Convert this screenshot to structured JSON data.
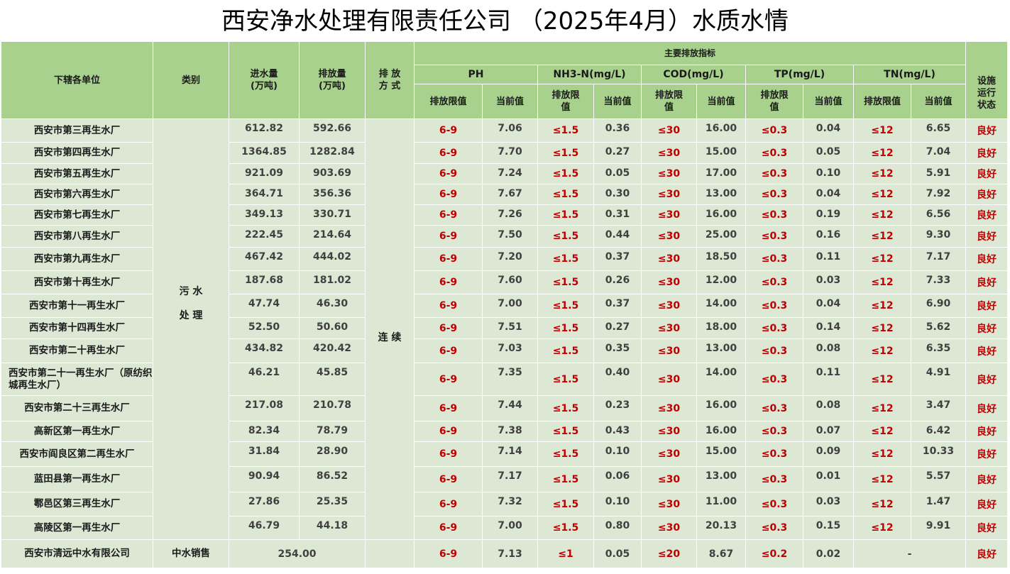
{
  "title": "西安净水处理有限责任公司 （2025年4月）水质水情",
  "header": {
    "unit": "下辖各单位",
    "category": "类别",
    "inflow": "进水量\n(万吨)",
    "outflow": "排放量\n(万吨)",
    "mode": "排 放\n方 式",
    "main_indicators": "主要排放指标",
    "status": "设施\n运行\n状态",
    "ph": "PH",
    "nh3n": "NH3-N(mg/L)",
    "cod": "COD(mg/L)",
    "tp": "TP(mg/L)",
    "tn": "TN(mg/L)",
    "limit": "排放限值",
    "limit_wrap": "排放限\n值",
    "current": "当前值"
  },
  "category_value": "污 水\n\n处 理",
  "mode_value": "连 续",
  "limits": {
    "ph": "6-9",
    "nh3n": "≤1.5",
    "cod": "≤30",
    "tp": "≤0.3",
    "tn": "≤12"
  },
  "rows": [
    {
      "name": "西安市第三再生水厂",
      "inflow": "612.82",
      "outflow": "592.66",
      "ph": "7.06",
      "nh3n": "0.36",
      "cod": "16.00",
      "tp": "0.04",
      "tn": "6.65",
      "status": "良好"
    },
    {
      "name": "西安市第四再生水厂",
      "inflow": "1364.85",
      "outflow": "1282.84",
      "ph": "7.70",
      "nh3n": "0.27",
      "cod": "15.00",
      "tp": "0.05",
      "tn": "7.04",
      "status": "良好"
    },
    {
      "name": "西安市第五再生水厂",
      "inflow": "921.09",
      "outflow": "903.69",
      "ph": "7.24",
      "nh3n": "0.05",
      "cod": "17.00",
      "tp": "0.10",
      "tn": "5.91",
      "status": "良好"
    },
    {
      "name": "西安市第六再生水厂",
      "inflow": "364.71",
      "outflow": "356.36",
      "ph": "7.67",
      "nh3n": "0.30",
      "cod": "13.00",
      "tp": "0.04",
      "tn": "7.92",
      "status": "良好"
    },
    {
      "name": "西安市第七再生水厂",
      "inflow": "349.13",
      "outflow": "330.71",
      "ph": "7.26",
      "nh3n": "0.31",
      "cod": "16.00",
      "tp": "0.19",
      "tn": "6.56",
      "status": "良好"
    },
    {
      "name": "西安市第八再生水厂",
      "inflow": "222.45",
      "outflow": "214.64",
      "ph": "7.50",
      "nh3n": "0.44",
      "cod": "25.00",
      "tp": "0.16",
      "tn": "9.30",
      "status": "良好"
    },
    {
      "name": "西安市第九再生水厂",
      "inflow": "467.42",
      "outflow": "444.02",
      "ph": "7.20",
      "nh3n": "0.37",
      "cod": "18.50",
      "tp": "0.11",
      "tn": "7.17",
      "status": "良好"
    },
    {
      "name": "西安市第十再生水厂",
      "inflow": "187.68",
      "outflow": "181.02",
      "ph": "7.60",
      "nh3n": "0.26",
      "cod": "12.00",
      "tp": "0.03",
      "tn": "7.33",
      "status": "良好"
    },
    {
      "name": "西安市第十一再生水厂",
      "inflow": "47.74",
      "outflow": "46.30",
      "ph": "7.00",
      "nh3n": "0.37",
      "cod": "14.00",
      "tp": "0.04",
      "tn": "6.90",
      "status": "良好"
    },
    {
      "name": "西安市第十四再生水厂",
      "inflow": "52.50",
      "outflow": "50.60",
      "ph": "7.51",
      "nh3n": "0.27",
      "cod": "18.00",
      "tp": "0.14",
      "tn": "5.62",
      "status": "良好"
    },
    {
      "name": "西安市第二十再生水厂",
      "inflow": "434.82",
      "outflow": "420.42",
      "ph": "7.03",
      "nh3n": "0.35",
      "cod": "13.00",
      "tp": "0.08",
      "tn": "6.35",
      "status": "良好"
    },
    {
      "name": "西安市第二十一再生水厂（原纺织城再生水厂）",
      "inflow": "46.21",
      "outflow": "45.85",
      "ph": "7.35",
      "nh3n": "0.40",
      "cod": "14.00",
      "tp": "0.11",
      "tn": "4.91",
      "status": "良好"
    },
    {
      "name": "西安市第二十三再生水厂",
      "inflow": "217.08",
      "outflow": "210.78",
      "ph": "7.44",
      "nh3n": "0.23",
      "cod": "16.00",
      "tp": "0.08",
      "tn": "3.47",
      "status": "良好"
    },
    {
      "name": "高新区第一再生水厂",
      "inflow": "82.34",
      "outflow": "78.79",
      "ph": "7.38",
      "nh3n": "0.43",
      "cod": "16.00",
      "tp": "0.07",
      "tn": "6.42",
      "status": "良好"
    },
    {
      "name": "西安市阎良区第二再生水厂",
      "inflow": "31.84",
      "outflow": "28.90",
      "ph": "7.14",
      "nh3n": "0.10",
      "cod": "15.00",
      "tp": "0.09",
      "tn": "10.33",
      "status": "良好"
    },
    {
      "name": "蓝田县第一再生水厂",
      "inflow": "90.94",
      "outflow": "86.52",
      "ph": "7.17",
      "nh3n": "0.06",
      "cod": "13.00",
      "tp": "0.01",
      "tn": "5.57",
      "status": "良好"
    },
    {
      "name": "鄠邑区第三再生水厂",
      "inflow": "27.86",
      "outflow": "25.35",
      "ph": "7.32",
      "nh3n": "0.10",
      "cod": "11.00",
      "tp": "0.03",
      "tn": "1.47",
      "status": "良好"
    },
    {
      "name": "高陵区第一再生水厂",
      "inflow": "46.79",
      "outflow": "44.18",
      "ph": "7.00",
      "nh3n": "0.80",
      "cod": "20.13",
      "tp": "0.15",
      "tn": "9.91",
      "status": "良好"
    }
  ],
  "row_heights": [
    33,
    30,
    29,
    29,
    29,
    31,
    33,
    33,
    33,
    30,
    34,
    46,
    36,
    29,
    35,
    36,
    34,
    33
  ],
  "final_row": {
    "name": "西安市清远中水有限公司",
    "category": "中水销售",
    "volume": "254.00",
    "ph_limit": "6-9",
    "ph": "7.13",
    "nh3n_limit": "≤1",
    "nh3n": "0.05",
    "cod_limit": "≤20",
    "cod": "8.67",
    "tp_limit": "≤0.2",
    "tp": "0.02",
    "tn": "-",
    "status": "良好"
  }
}
